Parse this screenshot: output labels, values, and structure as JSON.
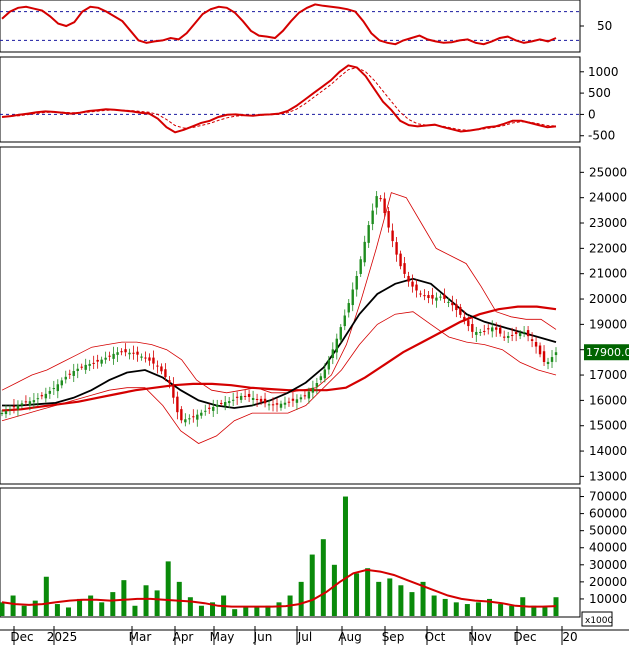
{
  "chart_data": [
    {
      "type": "line",
      "panel": "stochastic",
      "ylim": [
        0,
        100
      ],
      "reference_lines": [
        80,
        20
      ],
      "yticks": [
        "50"
      ],
      "colors": {
        "line": "#d40000",
        "reference": "#1a1aa0"
      },
      "series": [
        {
          "values": [
            65,
            80,
            88,
            90,
            86,
            82,
            70,
            55,
            50,
            58,
            80,
            90,
            88,
            80,
            70,
            60,
            40,
            20,
            15,
            18,
            20,
            25,
            22,
            35,
            55,
            75,
            85,
            90,
            88,
            78,
            60,
            40,
            30,
            28,
            25,
            40,
            60,
            78,
            88,
            95,
            92,
            90,
            88,
            85,
            80,
            60,
            35,
            20,
            15,
            12,
            20,
            25,
            30,
            22,
            18,
            15,
            16,
            20,
            22,
            15,
            12,
            18,
            25,
            28,
            20,
            15,
            18,
            22,
            18,
            25
          ]
        }
      ]
    },
    {
      "type": "line",
      "panel": "macd",
      "ylim": [
        -600,
        1300
      ],
      "reference_lines": [
        0
      ],
      "yticks": [
        "1000",
        "500",
        "0",
        "-500"
      ],
      "colors": {
        "macd": "#d40000",
        "signal": "#d40000",
        "reference": "#1a1aa0"
      },
      "series": [
        {
          "name": "",
          "values": [
            -60,
            -40,
            -10,
            20,
            50,
            70,
            60,
            40,
            20,
            40,
            80,
            100,
            120,
            110,
            90,
            70,
            40,
            20,
            -100,
            -300,
            -420,
            -360,
            -280,
            -200,
            -150,
            -60,
            -10,
            0,
            -20,
            -30,
            -10,
            0,
            20,
            80,
            200,
            350,
            500,
            650,
            800,
            1000,
            1150,
            1100,
            900,
            600,
            300,
            100,
            -150,
            -250,
            -280,
            -260,
            -240,
            -300,
            -350,
            -400,
            -380,
            -350,
            -300,
            -280,
            -220,
            -150,
            -150,
            -200,
            -250,
            -300,
            -280
          ]
        },
        {
          "name": "",
          "values": [
            -50,
            -45,
            -30,
            -5,
            25,
            45,
            55,
            50,
            40,
            40,
            55,
            75,
            95,
            105,
            100,
            90,
            70,
            50,
            0,
            -120,
            -260,
            -320,
            -310,
            -260,
            -210,
            -140,
            -80,
            -40,
            -25,
            -25,
            -20,
            -10,
            5,
            40,
            120,
            250,
            400,
            550,
            700,
            880,
            1050,
            1100,
            1000,
            800,
            550,
            300,
            50,
            -120,
            -220,
            -250,
            -250,
            -280,
            -320,
            -360,
            -370,
            -360,
            -330,
            -300,
            -260,
            -200,
            -170,
            -180,
            -220,
            -260,
            -270
          ]
        }
      ]
    },
    {
      "type": "candlestick",
      "panel": "price",
      "ylim": [
        12700,
        26000
      ],
      "yticks": [
        "25000",
        "24000",
        "23000",
        "22000",
        "21000",
        "20000",
        "19000",
        "18000",
        "17000",
        "16000",
        "15000",
        "14000",
        "13000"
      ],
      "last_price": "17900.00",
      "colors": {
        "up": "#1e8c1e",
        "down": "#d40000",
        "ma_long": "#d40000",
        "ma_mid": "#000000",
        "bollinger": "#d40000",
        "price_tag": "#006400"
      },
      "close": [
        15500,
        15700,
        15900,
        16000,
        16200,
        16500,
        16900,
        17200,
        17400,
        17500,
        17700,
        17900,
        17900,
        17800,
        17600,
        17300,
        16700,
        15200,
        15300,
        15500,
        15700,
        15900,
        16000,
        16200,
        16100,
        15900,
        15800,
        15900,
        16000,
        16200,
        16600,
        17300,
        18400,
        19600,
        21000,
        22800,
        24300,
        22800,
        21400,
        20600,
        20200,
        20000,
        20100,
        19800,
        19300,
        18700,
        18700,
        18900,
        18500,
        18600,
        18700,
        18200,
        17400,
        17900
      ],
      "bollinger_upper": [
        16400,
        16700,
        17000,
        17200,
        17500,
        17800,
        18100,
        18200,
        18300,
        18300,
        18200,
        18000,
        17600,
        16800,
        16400,
        16300,
        16400,
        16500,
        16300,
        16300,
        16400,
        16500,
        17000,
        18200,
        20000,
        22000,
        24200,
        24000,
        23000,
        22000,
        21700,
        21400,
        20500,
        19500,
        19300,
        19200,
        19200,
        18800
      ],
      "bollinger_lower": [
        15200,
        15400,
        15600,
        15800,
        16000,
        16200,
        16400,
        16500,
        16500,
        15800,
        14800,
        14300,
        14600,
        15200,
        15500,
        15500,
        15500,
        15800,
        16500,
        17200,
        18200,
        19000,
        19400,
        19500,
        19000,
        18500,
        18300,
        18200,
        18000,
        17500,
        17200,
        17000
      ],
      "ma_mid": [
        15800,
        15800,
        15850,
        15900,
        16100,
        16400,
        16800,
        17100,
        17200,
        16900,
        16400,
        16000,
        15800,
        15700,
        15800,
        16000,
        16300,
        16700,
        17300,
        18300,
        19400,
        20200,
        20600,
        20800,
        20600,
        20000,
        19400,
        19100,
        18900,
        18700,
        18500,
        18300
      ],
      "ma_long": [
        15600,
        15650,
        15750,
        15850,
        15950,
        16100,
        16250,
        16400,
        16500,
        16600,
        16650,
        16650,
        16600,
        16500,
        16450,
        16400,
        16400,
        16400,
        16500,
        16900,
        17400,
        17900,
        18300,
        18700,
        19100,
        19400,
        19600,
        19700,
        19700,
        19600
      ],
      "x_axis": [
        "Dec",
        "2025",
        "Mar",
        "Apr",
        "May",
        "Jun",
        "Jul",
        "Aug",
        "Sep",
        "Oct",
        "Nov",
        "Dec",
        "20"
      ]
    },
    {
      "type": "bar",
      "panel": "volume",
      "ylim": [
        0,
        75000
      ],
      "yticks": [
        "70000",
        "60000",
        "50000",
        "40000",
        "30000",
        "20000",
        "10000"
      ],
      "unit_label": "x1000",
      "colors": {
        "bars": "#0a8a0a",
        "ma": "#d40000"
      },
      "values": [
        8000,
        12000,
        6000,
        9000,
        23000,
        7000,
        5000,
        10000,
        12000,
        8000,
        14000,
        21000,
        6000,
        18000,
        15000,
        32000,
        20000,
        11000,
        6000,
        8000,
        12000,
        4000,
        5000,
        5000,
        6000,
        8000,
        12000,
        20000,
        36000,
        45000,
        30000,
        70000,
        25000,
        28000,
        20000,
        22000,
        18000,
        14000,
        20000,
        12000,
        10000,
        8000,
        7000,
        8000,
        10000,
        7000,
        6000,
        11000,
        6000,
        5000,
        11000
      ],
      "moving_average": [
        8000,
        7000,
        6500,
        7000,
        8000,
        9000,
        9500,
        9500,
        9000,
        9500,
        10000,
        10000,
        9500,
        9000,
        8500,
        7500,
        6000,
        5500,
        5500,
        5500,
        5500,
        5800,
        7000,
        9500,
        14000,
        20000,
        25000,
        27000,
        26000,
        24000,
        21000,
        18000,
        15000,
        12000,
        10000,
        9000,
        8500,
        7500,
        6000,
        5500,
        5500,
        5800
      ]
    }
  ]
}
